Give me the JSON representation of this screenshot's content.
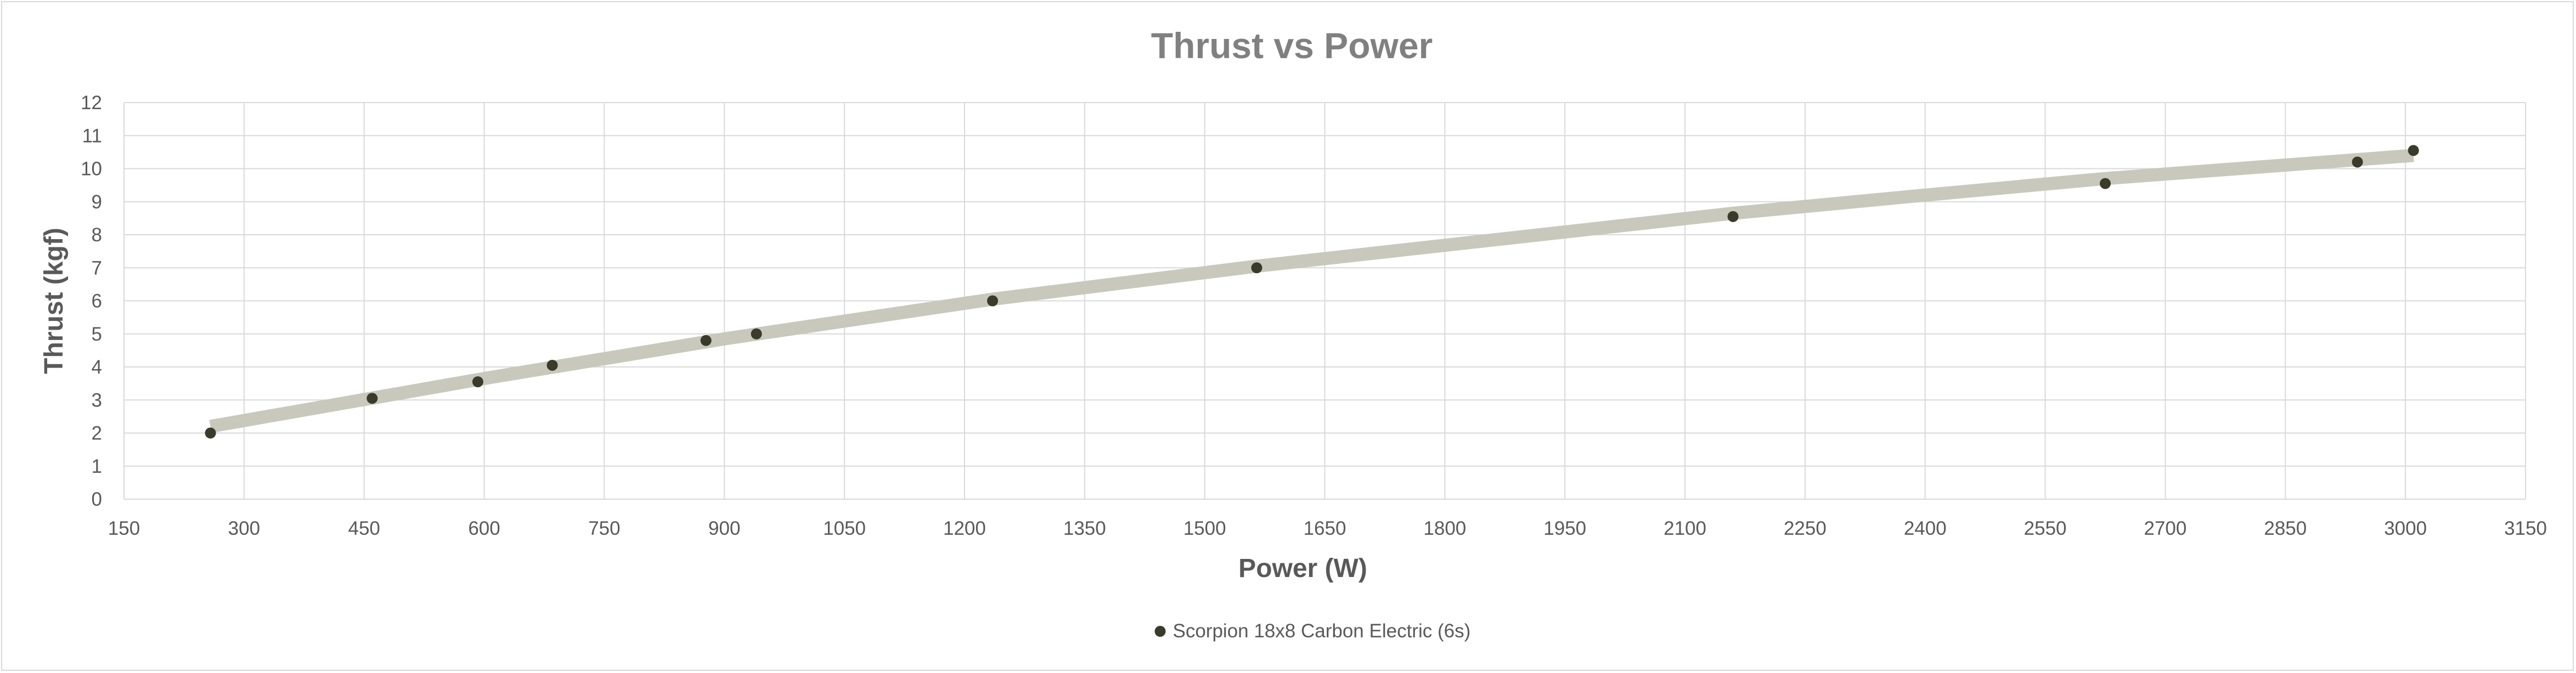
{
  "chart_data": {
    "type": "scatter",
    "title": "Thrust vs Power",
    "xlabel": "Power (W)",
    "ylabel": "Thrust (kgf)",
    "xlim": [
      150,
      3150
    ],
    "ylim": [
      0,
      12
    ],
    "xticks": [
      150,
      300,
      450,
      600,
      750,
      900,
      1050,
      1200,
      1350,
      1500,
      1650,
      1800,
      1950,
      2100,
      2250,
      2400,
      2550,
      2700,
      2850,
      3000,
      3150
    ],
    "yticks": [
      0,
      1,
      2,
      3,
      4,
      5,
      6,
      7,
      8,
      9,
      10,
      11,
      12
    ],
    "grid": true,
    "legend_position": "bottom",
    "series": [
      {
        "name": "Scorpion 18x8  Carbon Electric (6s)",
        "color": "#3b3b2b",
        "points": [
          {
            "x": 258,
            "y": 2.0
          },
          {
            "x": 460,
            "y": 3.05
          },
          {
            "x": 592,
            "y": 3.55
          },
          {
            "x": 685,
            "y": 4.05
          },
          {
            "x": 877,
            "y": 4.8
          },
          {
            "x": 940,
            "y": 5.0
          },
          {
            "x": 1235,
            "y": 6.0
          },
          {
            "x": 1565,
            "y": 7.0
          },
          {
            "x": 2160,
            "y": 8.55
          },
          {
            "x": 2625,
            "y": 9.55
          },
          {
            "x": 2940,
            "y": 10.2
          },
          {
            "x": 3010,
            "y": 10.55
          }
        ]
      }
    ],
    "trendline": {
      "color": "#c8c8bc",
      "points": [
        {
          "x": 258,
          "y": 2.2
        },
        {
          "x": 600,
          "y": 3.65
        },
        {
          "x": 900,
          "y": 4.85
        },
        {
          "x": 1235,
          "y": 6.05
        },
        {
          "x": 1565,
          "y": 7.05
        },
        {
          "x": 1900,
          "y": 7.95
        },
        {
          "x": 2160,
          "y": 8.65
        },
        {
          "x": 2400,
          "y": 9.2
        },
        {
          "x": 2625,
          "y": 9.7
        },
        {
          "x": 3010,
          "y": 10.4
        }
      ]
    }
  }
}
